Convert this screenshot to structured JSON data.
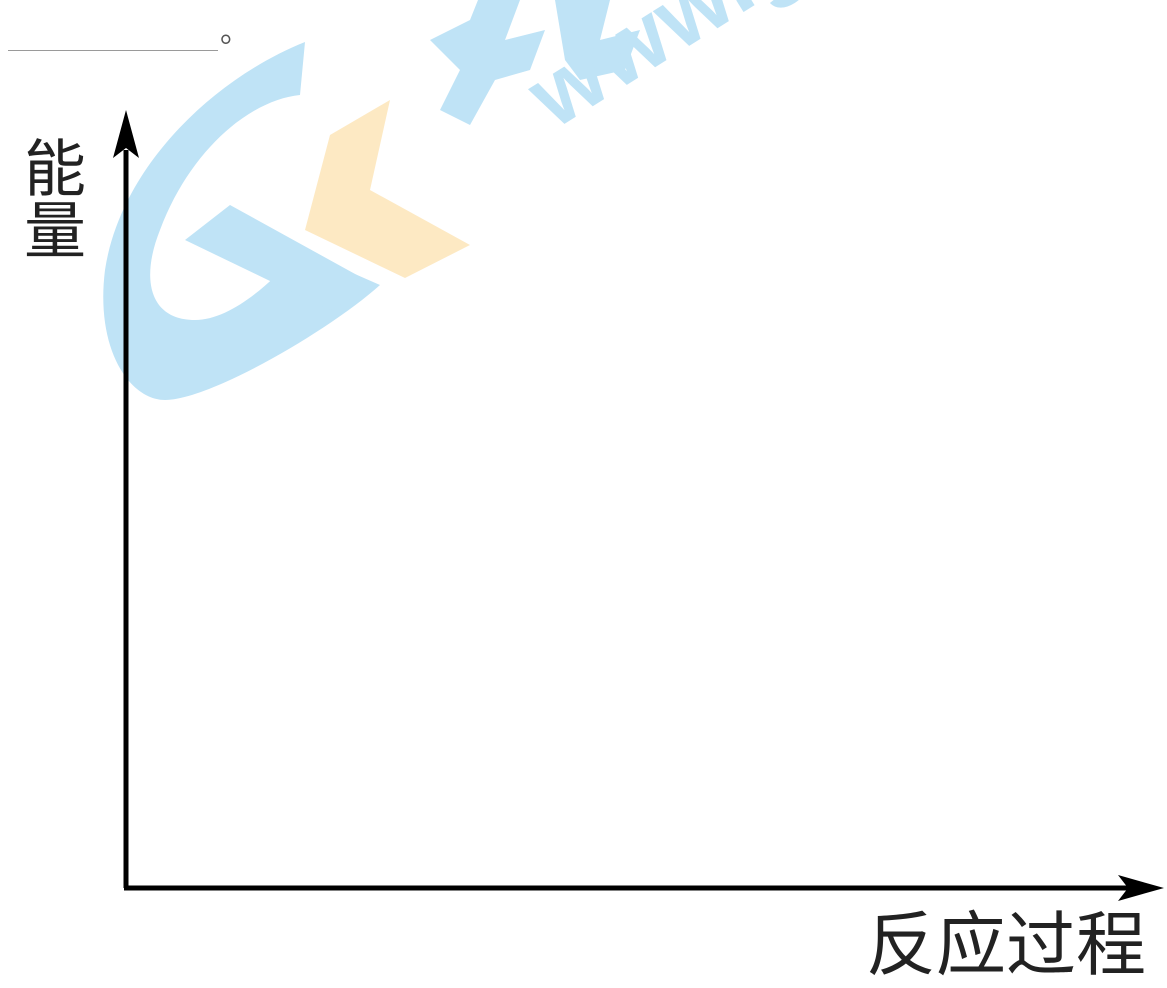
{
  "question": {
    "blank_suffix": "。"
  },
  "diagram": {
    "y_axis_label": "能量",
    "x_axis_label": "反应过程",
    "colors": {
      "axis": "#000000",
      "watermark_blue": "#bfe3f6",
      "watermark_orange": "#fde9c3"
    }
  },
  "watermark": {
    "text": "www.gk",
    "logo": "gk-logo"
  }
}
